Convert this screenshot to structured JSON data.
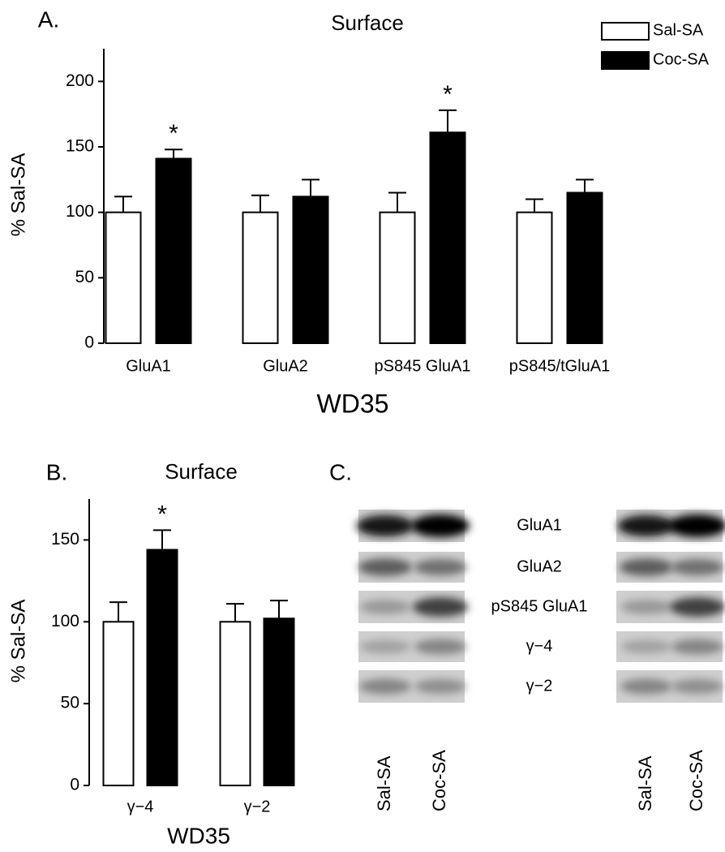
{
  "chart_data": [
    {
      "type": "bar",
      "panel": "A.",
      "title": "Surface",
      "y_label": "% Sal-SA",
      "x_label": "WD35",
      "categories": [
        "GluA1",
        "GluA2",
        "pS845 GluA1",
        "pS845/tGluA1"
      ],
      "series": [
        {
          "name": "Sal-SA",
          "color": "#ffffff",
          "values": [
            100,
            100,
            100,
            100
          ],
          "errors": [
            12,
            13,
            15,
            10
          ],
          "annotations": [
            null,
            null,
            null,
            null
          ]
        },
        {
          "name": "Coc-SA",
          "color": "#000000",
          "values": [
            141,
            112,
            161,
            115
          ],
          "errors": [
            7,
            13,
            17,
            10
          ],
          "annotations": [
            "*",
            null,
            "*",
            null
          ]
        }
      ],
      "ylim": [
        0,
        225
      ],
      "yticks": [
        0,
        50,
        100,
        150,
        200
      ],
      "legend": "top-right"
    },
    {
      "type": "bar",
      "panel": "B.",
      "title": "Surface",
      "y_label": "% Sal-SA",
      "x_label": "WD35",
      "categories": [
        "γ−4",
        "γ−2"
      ],
      "series": [
        {
          "name": "Sal-SA",
          "color": "#ffffff",
          "values": [
            100,
            100
          ],
          "errors": [
            12,
            11
          ],
          "annotations": [
            null,
            null
          ]
        },
        {
          "name": "Coc-SA",
          "color": "#000000",
          "values": [
            144,
            102
          ],
          "errors": [
            12,
            11
          ],
          "annotations": [
            "*",
            null
          ]
        }
      ],
      "ylim": [
        0,
        175
      ],
      "yticks": [
        0,
        50,
        100,
        150
      ]
    }
  ],
  "blot": {
    "panel": "C.",
    "rows": [
      "GluA1",
      "GluA2",
      "pS845 GluA1",
      "γ−4",
      "γ−2"
    ],
    "blots": [
      {
        "lanes": [
          "Sal-SA",
          "Coc-SA"
        ]
      },
      {
        "lanes": [
          "Sal-SA",
          "Coc-SA"
        ]
      }
    ]
  }
}
